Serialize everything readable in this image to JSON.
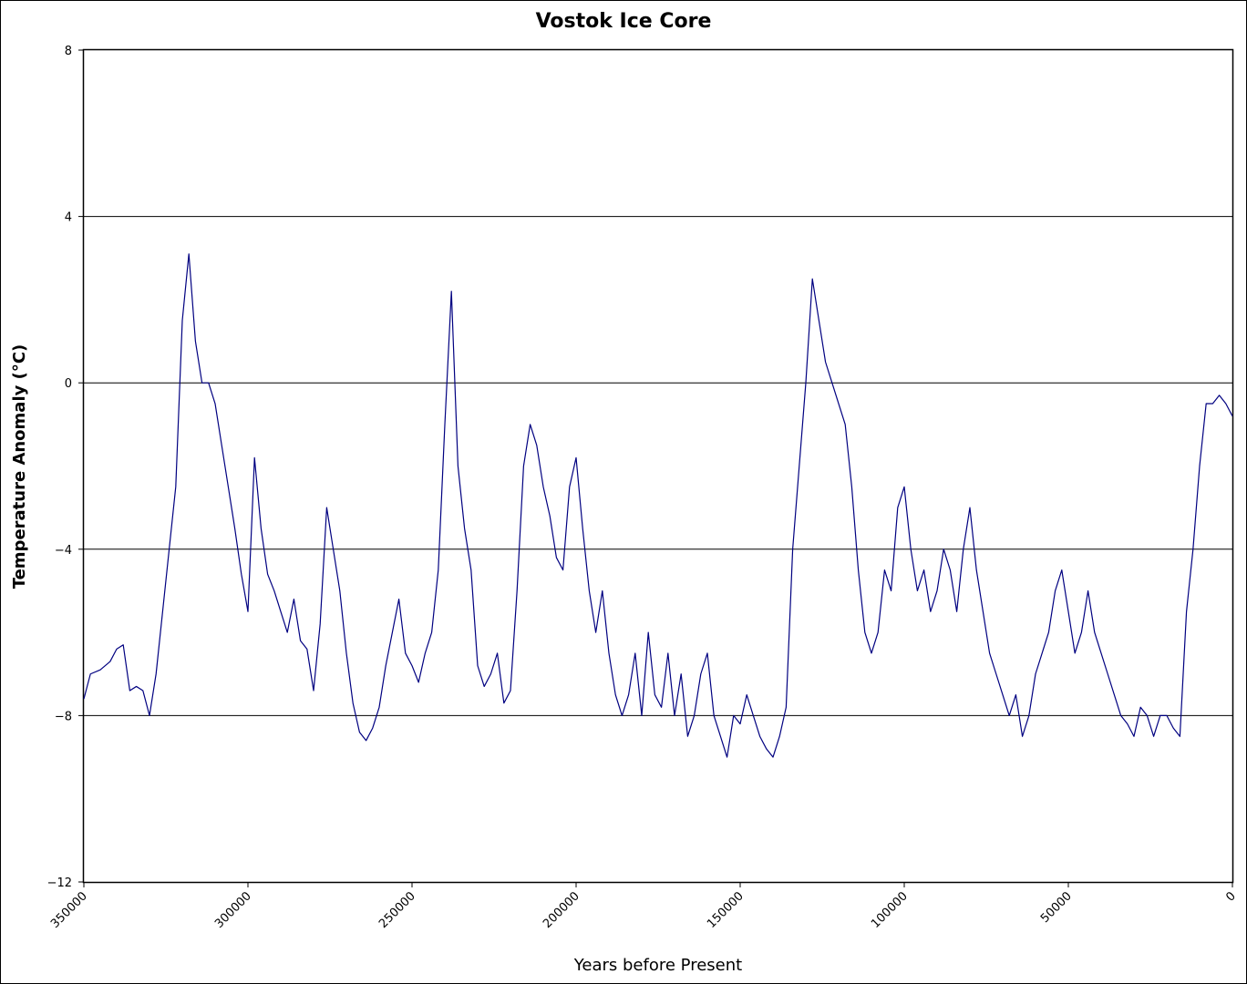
{
  "chart_data": {
    "type": "line",
    "title": "Vostok Ice Core",
    "xlabel": "Years before Present",
    "ylabel": "Temperature Anomaly (°C)",
    "xlim": [
      350000,
      0
    ],
    "ylim": [
      -12,
      8
    ],
    "x_ticks": [
      350000,
      300000,
      250000,
      200000,
      150000,
      100000,
      50000,
      0
    ],
    "y_ticks": [
      8,
      4,
      0,
      -4,
      -8,
      -12
    ],
    "x_tick_labels": [
      "350000",
      "300000",
      "250000",
      "200000",
      "150000",
      "100000",
      "50000",
      "0"
    ],
    "y_tick_labels": [
      "8",
      "4",
      "0",
      "−4",
      "−8",
      "−12"
    ],
    "grid": "horizontal",
    "line_color": "#000080",
    "series": [
      {
        "x": [
          350000,
          348000,
          345000,
          342000,
          340000,
          338000,
          336000,
          334000,
          332000,
          330000,
          328000,
          326000,
          324000,
          322000,
          320000,
          318000,
          316000,
          314000,
          312000,
          310000,
          308000,
          306000,
          304000,
          302000,
          300000,
          298000,
          296000,
          294000,
          292000,
          290000,
          288000,
          286000,
          284000,
          282000,
          280000,
          278000,
          276000,
          274000,
          272000,
          270000,
          268000,
          266000,
          264000,
          262000,
          260000,
          258000,
          256000,
          254000,
          252000,
          250000,
          248000,
          246000,
          244000,
          242000,
          240000,
          238000,
          236000,
          234000,
          232000,
          230000,
          228000,
          226000,
          224000,
          222000,
          220000,
          218000,
          216000,
          214000,
          212000,
          210000,
          208000,
          206000,
          204000,
          202000,
          200000,
          198000,
          196000,
          194000,
          192000,
          190000,
          188000,
          186000,
          184000,
          182000,
          180000,
          178000,
          176000,
          174000,
          172000,
          170000,
          168000,
          166000,
          164000,
          162000,
          160000,
          158000,
          156000,
          154000,
          152000,
          150000,
          148000,
          146000,
          144000,
          142000,
          140000,
          138000,
          136000,
          134000,
          132000,
          130000,
          128000,
          126000,
          124000,
          122000,
          120000,
          118000,
          116000,
          114000,
          112000,
          110000,
          108000,
          106000,
          104000,
          102000,
          100000,
          98000,
          96000,
          94000,
          92000,
          90000,
          88000,
          86000,
          84000,
          82000,
          80000,
          78000,
          76000,
          74000,
          72000,
          70000,
          68000,
          66000,
          64000,
          62000,
          60000,
          58000,
          56000,
          54000,
          52000,
          50000,
          48000,
          46000,
          44000,
          42000,
          40000,
          38000,
          36000,
          34000,
          32000,
          30000,
          28000,
          26000,
          24000,
          22000,
          20000,
          18000,
          16000,
          14000,
          12000,
          10000,
          8000,
          6000,
          4000,
          2000,
          0
        ],
        "y": [
          -7.6,
          -7.0,
          -6.9,
          -6.7,
          -6.4,
          -6.3,
          -7.4,
          -7.3,
          -7.4,
          -8.0,
          -7.0,
          -5.5,
          -4.0,
          -2.5,
          1.5,
          3.1,
          1.0,
          0.0,
          0.0,
          -0.5,
          -1.5,
          -2.5,
          -3.5,
          -4.6,
          -5.5,
          -1.8,
          -3.5,
          -4.6,
          -5.0,
          -5.5,
          -6.0,
          -5.2,
          -6.2,
          -6.4,
          -7.4,
          -5.8,
          -3.0,
          -4.0,
          -5.0,
          -6.5,
          -7.7,
          -8.4,
          -8.6,
          -8.3,
          -7.8,
          -6.8,
          -6.0,
          -5.2,
          -6.5,
          -6.8,
          -7.2,
          -6.5,
          -6.0,
          -4.5,
          -1.0,
          2.2,
          -2.0,
          -3.5,
          -4.5,
          -6.8,
          -7.3,
          -7.0,
          -6.5,
          -7.7,
          -7.4,
          -5.0,
          -2.0,
          -1.0,
          -1.5,
          -2.5,
          -3.2,
          -4.2,
          -4.5,
          -2.5,
          -1.8,
          -3.5,
          -5.0,
          -6.0,
          -5.0,
          -6.5,
          -7.5,
          -8.0,
          -7.5,
          -6.5,
          -8.0,
          -6.0,
          -7.5,
          -7.8,
          -6.5,
          -8.0,
          -7.0,
          -8.5,
          -8.0,
          -7.0,
          -6.5,
          -8.0,
          -8.5,
          -9.0,
          -8.0,
          -8.2,
          -7.5,
          -8.0,
          -8.5,
          -8.8,
          -9.0,
          -8.5,
          -7.8,
          -4.0,
          -2.0,
          0.0,
          2.5,
          1.5,
          0.5,
          0.0,
          -0.5,
          -1.0,
          -2.5,
          -4.5,
          -6.0,
          -6.5,
          -6.0,
          -4.5,
          -5.0,
          -3.0,
          -2.5,
          -4.0,
          -5.0,
          -4.5,
          -5.5,
          -5.0,
          -4.0,
          -4.5,
          -5.5,
          -4.0,
          -3.0,
          -4.5,
          -5.5,
          -6.5,
          -7.0,
          -7.5,
          -8.0,
          -7.5,
          -8.5,
          -8.0,
          -7.0,
          -6.5,
          -6.0,
          -5.0,
          -4.5,
          -5.5,
          -6.5,
          -6.0,
          -5.0,
          -6.0,
          -6.5,
          -7.0,
          -7.5,
          -8.0,
          -8.2,
          -8.5,
          -7.8,
          -8.0,
          -8.5,
          -8.0,
          -8.0,
          -8.3,
          -8.5,
          -5.5,
          -4.0,
          -2.0,
          -0.5,
          -0.5,
          -0.3,
          -0.5,
          -0.8
        ]
      }
    ]
  }
}
